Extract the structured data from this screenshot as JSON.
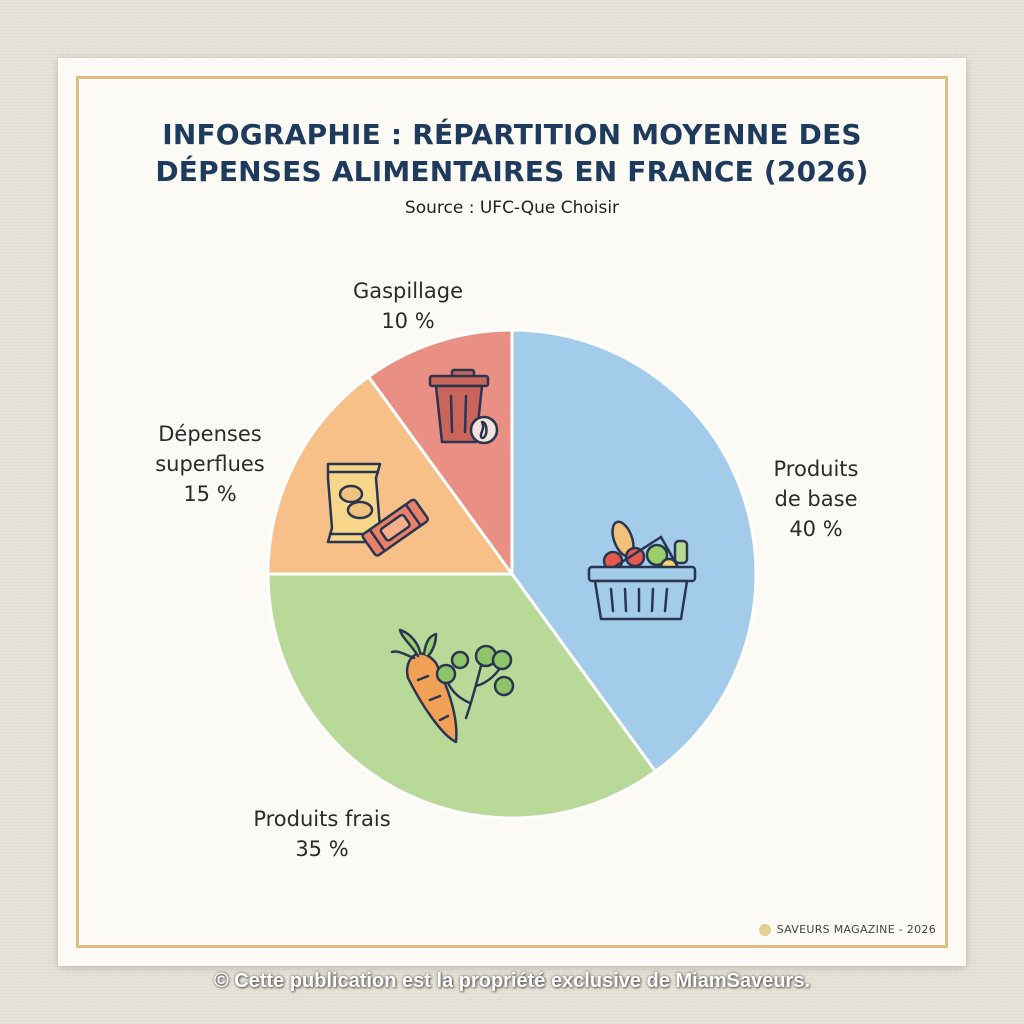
{
  "chart_data": {
    "type": "pie",
    "title": "INFOGRAPHIE : RÉPARTITION MOYENNE DES DÉPENSES ALIMENTAIRES EN FRANCE (2026)",
    "title_lines": [
      "INFOGRAPHIE : RÉPARTITION MOYENNE DES",
      "DÉPENSES ALIMENTAIRES EN FRANCE (2026)"
    ],
    "subtitle": "Source : UFC-Que Choisir",
    "slices": [
      {
        "label_lines": [
          "Produits",
          "de base"
        ],
        "value": 40,
        "value_label": "40 %",
        "color": "#a3cbea",
        "icon": "shopping-basket-icon"
      },
      {
        "label_lines": [
          "Produits frais"
        ],
        "value": 35,
        "value_label": "35 %",
        "color": "#b9d998",
        "icon": "carrot-icon"
      },
      {
        "label_lines": [
          "Dépenses",
          "superflues"
        ],
        "value": 15,
        "value_label": "15 %",
        "color": "#f6c088",
        "icon": "snacks-icon"
      },
      {
        "label_lines": [
          "Gaspillage"
        ],
        "value": 10,
        "value_label": "10 %",
        "color": "#ea8f83",
        "icon": "trash-bin-icon"
      }
    ]
  },
  "footer": {
    "publisher": "SAVEURS MAGAZINE - 2026",
    "dot_color": "#e6cf92"
  },
  "copyright": "© Cette publication est la propriété exclusive de MiamSaveurs."
}
